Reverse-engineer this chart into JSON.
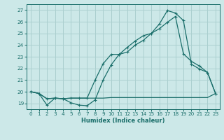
{
  "xlabel": "Humidex (Indice chaleur)",
  "bg_color": "#cce8e8",
  "grid_color": "#aacfcf",
  "line_color": "#1a6e6a",
  "xlim": [
    -0.5,
    23.5
  ],
  "ylim": [
    18.5,
    27.5
  ],
  "xticks": [
    0,
    1,
    2,
    3,
    4,
    5,
    6,
    7,
    8,
    9,
    10,
    11,
    12,
    13,
    14,
    15,
    16,
    17,
    18,
    19,
    20,
    21,
    22,
    23
  ],
  "yticks": [
    19,
    20,
    21,
    22,
    23,
    24,
    25,
    26,
    27
  ],
  "line1_x": [
    0,
    1,
    2,
    3,
    4,
    5,
    6,
    7,
    8,
    9,
    10,
    11,
    12,
    13,
    14,
    15,
    16,
    17,
    18,
    19,
    20,
    21,
    22,
    23
  ],
  "line1_y": [
    20.0,
    19.85,
    18.85,
    19.45,
    19.4,
    19.05,
    18.85,
    18.8,
    19.3,
    21.0,
    22.3,
    23.2,
    23.8,
    24.35,
    24.8,
    25.0,
    25.8,
    26.95,
    26.75,
    26.1,
    22.35,
    21.95,
    21.65,
    19.85
  ],
  "line2_x": [
    0,
    1,
    2,
    3,
    4,
    5,
    6,
    7,
    8,
    9,
    10,
    11,
    12,
    13,
    14,
    15,
    16,
    17,
    18,
    19,
    20,
    21,
    22,
    23
  ],
  "line2_y": [
    20.0,
    19.85,
    19.4,
    19.45,
    19.4,
    19.45,
    19.45,
    19.45,
    19.45,
    19.45,
    19.5,
    19.5,
    19.5,
    19.5,
    19.5,
    19.5,
    19.5,
    19.5,
    19.5,
    19.5,
    19.5,
    19.5,
    19.5,
    19.85
  ],
  "line3_x": [
    0,
    1,
    2,
    3,
    4,
    5,
    6,
    7,
    8,
    9,
    10,
    11,
    12,
    13,
    14,
    15,
    16,
    17,
    18,
    19,
    20,
    21,
    22,
    23
  ],
  "line3_y": [
    20.0,
    19.85,
    19.4,
    19.45,
    19.4,
    19.45,
    19.45,
    19.45,
    21.0,
    22.4,
    23.2,
    23.2,
    23.4,
    24.0,
    24.4,
    25.0,
    25.4,
    25.95,
    26.45,
    23.25,
    22.6,
    22.2,
    21.65,
    19.85
  ]
}
